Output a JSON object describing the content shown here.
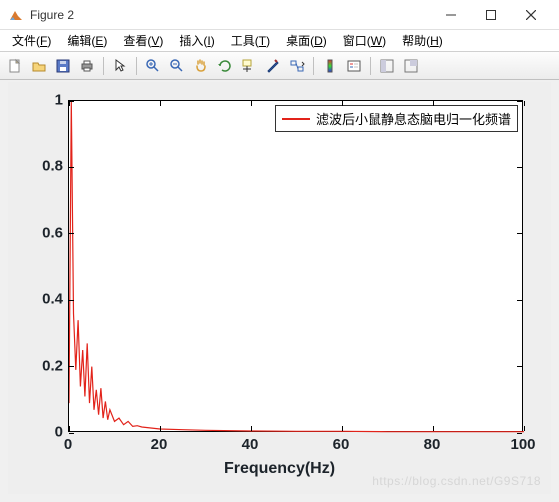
{
  "window": {
    "title": "Figure 2",
    "icon_colors": {
      "peak": "#d97a2f",
      "bg": "#6fa8dc"
    }
  },
  "menus": [
    {
      "label": "文件",
      "key": "F"
    },
    {
      "label": "编辑",
      "key": "E"
    },
    {
      "label": "查看",
      "key": "V"
    },
    {
      "label": "插入",
      "key": "I"
    },
    {
      "label": "工具",
      "key": "T"
    },
    {
      "label": "桌面",
      "key": "D"
    },
    {
      "label": "窗口",
      "key": "W"
    },
    {
      "label": "帮助",
      "key": "H"
    }
  ],
  "toolbar_groups": [
    [
      "new",
      "open",
      "save",
      "print"
    ],
    [
      "pointer"
    ],
    [
      "zoom-in",
      "zoom-out",
      "pan",
      "rotate",
      "datacursor",
      "brush",
      "link"
    ],
    [
      "colorbar",
      "legend"
    ],
    [
      "docking",
      "minimize"
    ]
  ],
  "chart": {
    "type": "line",
    "xlabel": "Frequency(Hz)",
    "legend_text": "滤波后小鼠静息态脑电归一化频谱",
    "legend_color": "#e2231a",
    "line_color": "#e2231a",
    "line_width": 1.2,
    "background_color": "#ffffff",
    "figure_bg": "#eeeeee",
    "axis_color": "#000000",
    "tick_fontsize": 15,
    "tick_color": "#1c232a",
    "label_fontsize": 16,
    "xlim": [
      0,
      100
    ],
    "ylim": [
      0,
      1
    ],
    "xticks": [
      0,
      20,
      40,
      60,
      80,
      100
    ],
    "yticks": [
      0,
      0.2,
      0.4,
      0.6,
      0.8,
      1
    ],
    "series": {
      "x": [
        0,
        0.5,
        1,
        1.5,
        2,
        2.5,
        3,
        3.5,
        4,
        4.5,
        5,
        5.5,
        6,
        6.5,
        7,
        7.5,
        8,
        8.5,
        9,
        10,
        11,
        12,
        13,
        14,
        15,
        16,
        18,
        20,
        25,
        30,
        40,
        50,
        60,
        70,
        80,
        90,
        100
      ],
      "y": [
        0.09,
        1.0,
        0.36,
        0.19,
        0.34,
        0.14,
        0.25,
        0.11,
        0.27,
        0.09,
        0.2,
        0.07,
        0.13,
        0.055,
        0.135,
        0.045,
        0.095,
        0.04,
        0.07,
        0.035,
        0.045,
        0.025,
        0.035,
        0.02,
        0.022,
        0.018,
        0.015,
        0.012,
        0.01,
        0.008,
        0.006,
        0.005,
        0.005,
        0.004,
        0.004,
        0.004,
        0.004
      ]
    }
  },
  "watermark": "https://blog.csdn.net/G9S718"
}
